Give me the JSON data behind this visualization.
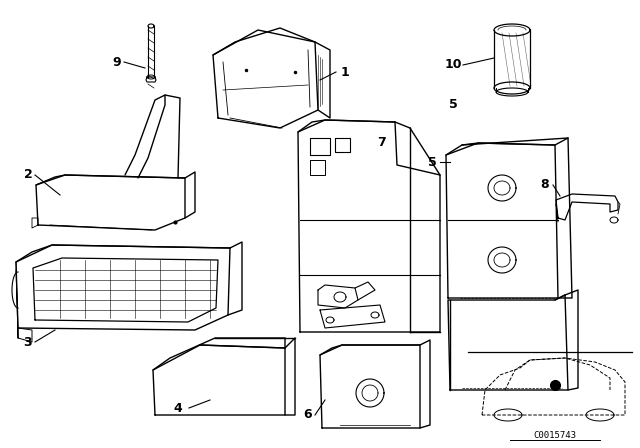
{
  "background_color": "#ffffff",
  "line_color": "#000000",
  "watermark": "C0015743",
  "fig_width": 6.4,
  "fig_height": 4.48,
  "dpi": 100
}
